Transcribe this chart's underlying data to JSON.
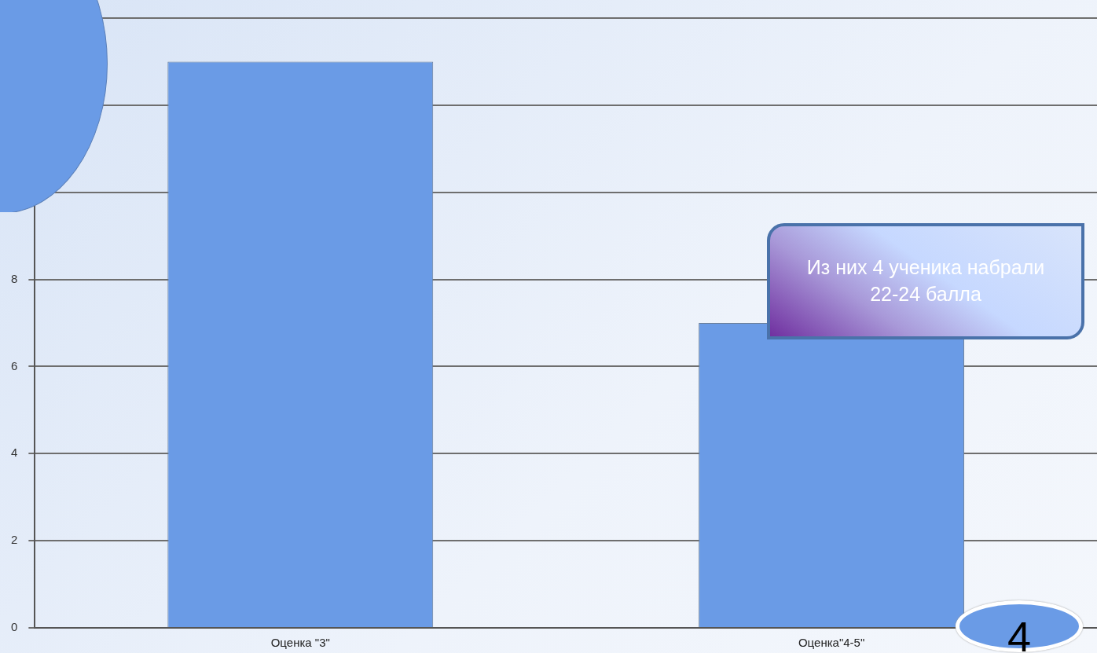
{
  "chart_data": {
    "type": "bar",
    "categories": [
      "Оценка \"3\"",
      "Оценка\"4-5\""
    ],
    "values": [
      13,
      7
    ],
    "color": "#6a9be6",
    "ylim": [
      0,
      14
    ],
    "yticks": [
      0,
      2,
      4,
      6,
      8,
      {
        "value": 10,
        "label": null
      },
      {
        "value": 12,
        "label": null
      },
      {
        "value": 14,
        "label": null
      }
    ],
    "grid": "y",
    "legend": false,
    "annotations": [
      "Из них 4 ученика набрали 22-24 балла",
      "4"
    ]
  }
}
